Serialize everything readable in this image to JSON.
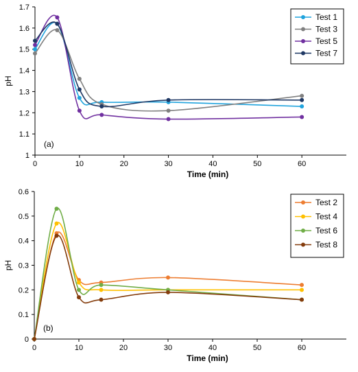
{
  "chart_data": [
    {
      "type": "line",
      "panel_label": "(a)",
      "xlabel": "Time (min)",
      "ylabel": "pH",
      "xlim": [
        0,
        70
      ],
      "ylim": [
        1,
        1.7
      ],
      "xticks": [
        0,
        10,
        20,
        30,
        40,
        50,
        60
      ],
      "yticks": [
        1,
        1.1,
        1.2,
        1.3,
        1.4,
        1.5,
        1.6,
        1.7
      ],
      "ytick_labels": [
        "1",
        "1.1",
        "1.2",
        "1.3",
        "1.4",
        "1.5",
        "1.6",
        "1.7"
      ],
      "grid": false,
      "legend_position": "top-right",
      "x": [
        0,
        5,
        10,
        15,
        30,
        60
      ],
      "series": [
        {
          "name": "Test 1",
          "color": "#1fa3dd",
          "values": [
            1.5,
            1.62,
            1.27,
            1.25,
            1.25,
            1.23
          ]
        },
        {
          "name": "Test 3",
          "color": "#808080",
          "values": [
            1.48,
            1.59,
            1.36,
            1.24,
            1.21,
            1.28
          ]
        },
        {
          "name": "Test 5",
          "color": "#7030a0",
          "values": [
            1.52,
            1.65,
            1.21,
            1.19,
            1.17,
            1.18
          ]
        },
        {
          "name": "Test 7",
          "color": "#1f3864",
          "values": [
            1.54,
            1.62,
            1.31,
            1.23,
            1.26,
            1.26
          ]
        }
      ]
    },
    {
      "type": "line",
      "panel_label": "(b)",
      "xlabel": "Time (min)",
      "ylabel": "pH",
      "xlim": [
        0,
        70
      ],
      "ylim": [
        0,
        0.6
      ],
      "xticks": [
        0,
        10,
        20,
        30,
        40,
        50,
        60
      ],
      "yticks": [
        0,
        0.1,
        0.2,
        0.3,
        0.4,
        0.5,
        0.6
      ],
      "ytick_labels": [
        "0",
        "0.1",
        "0.2",
        "0.3",
        "0.4",
        "0.5",
        "0.6"
      ],
      "grid": false,
      "legend_position": "top-right",
      "x": [
        0,
        5,
        10,
        15,
        30,
        60
      ],
      "series": [
        {
          "name": "Test 2",
          "color": "#ed7d31",
          "values": [
            0,
            0.43,
            0.24,
            0.23,
            0.25,
            0.22
          ]
        },
        {
          "name": "Test 4",
          "color": "#ffc000",
          "values": [
            0,
            0.47,
            0.23,
            0.2,
            0.2,
            0.2
          ]
        },
        {
          "name": "Test 6",
          "color": "#70ad47",
          "values": [
            0,
            0.53,
            0.2,
            0.22,
            0.2,
            0.16
          ]
        },
        {
          "name": "Test 8",
          "color": "#843c0c",
          "values": [
            0,
            0.42,
            0.17,
            0.16,
            0.19,
            0.16
          ]
        }
      ]
    }
  ]
}
